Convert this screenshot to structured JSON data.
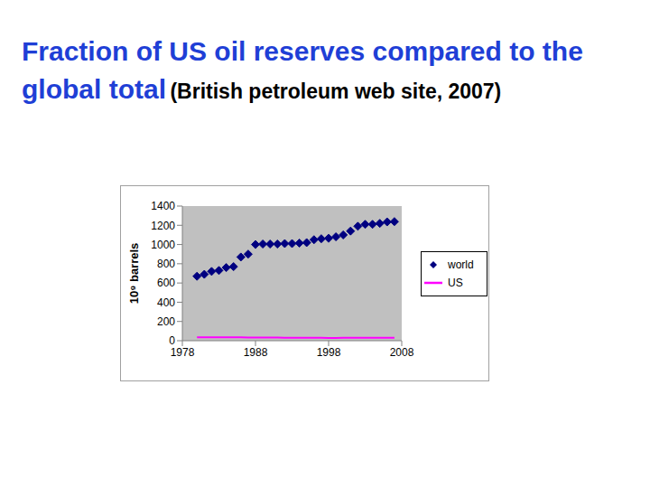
{
  "chart_data": {
    "type": "scatter",
    "title": "Fraction of US oil reserves compared to the global total",
    "subtitle": "(British petroleum web site, 2007)",
    "ylabel": "10⁹ barrels",
    "x": [
      1980,
      1981,
      1982,
      1983,
      1984,
      1985,
      1986,
      1987,
      1988,
      1989,
      1990,
      1991,
      1992,
      1993,
      1994,
      1995,
      1996,
      1997,
      1998,
      1999,
      2000,
      2001,
      2002,
      2003,
      2004,
      2005,
      2006,
      2007
    ],
    "series": [
      {
        "name": "world",
        "color": "#000080",
        "type": "scatter",
        "marker": "diamond",
        "values": [
          670,
          690,
          720,
          730,
          760,
          770,
          870,
          900,
          1000,
          1005,
          1005,
          1005,
          1010,
          1010,
          1015,
          1020,
          1050,
          1060,
          1065,
          1080,
          1100,
          1140,
          1190,
          1210,
          1210,
          1220,
          1235,
          1238
        ]
      },
      {
        "name": "US",
        "color": "#ff00ff",
        "type": "line",
        "marker": "none",
        "values": [
          36,
          36,
          35,
          35,
          36,
          36,
          35,
          34,
          34,
          34,
          33,
          32,
          31,
          31,
          30,
          30,
          30,
          30,
          29,
          29,
          30,
          30,
          30,
          31,
          30,
          30,
          30,
          30
        ]
      }
    ],
    "xlim": [
      1978,
      2008
    ],
    "xticks": [
      1978,
      1988,
      1998,
      2008
    ],
    "ylim": [
      0,
      1400
    ],
    "yticks": [
      0,
      200,
      400,
      600,
      800,
      1000,
      1200,
      1400
    ],
    "grid": false,
    "legend": "right"
  }
}
